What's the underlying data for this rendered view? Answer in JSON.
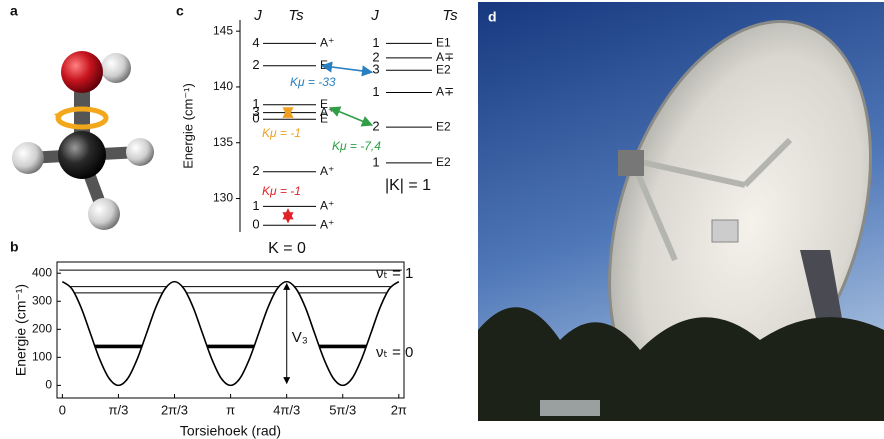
{
  "panel_labels": [
    "a",
    "b",
    "c",
    "d"
  ],
  "chart_data": [
    {
      "type": "line",
      "xlabel": "Torsiehoek (rad)",
      "ylabel": "Energie (cm⁻¹)",
      "x": [
        0,
        0.175,
        0.349,
        0.524,
        0.698,
        0.873,
        1.047,
        1.222,
        1.396,
        1.571,
        1.745,
        1.92,
        2.094,
        2.269,
        2.443,
        2.618,
        2.793,
        2.967,
        3.142,
        3.316,
        3.491,
        3.665,
        3.84,
        4.014,
        4.189,
        4.363,
        4.538,
        4.712,
        4.887,
        5.061,
        5.236,
        5.411,
        5.585,
        5.76,
        5.934,
        6.109,
        6.283
      ],
      "series": [
        {
          "color": "#000000",
          "values": [
            370,
            345,
            278,
            185,
            93,
            25,
            0,
            25,
            93,
            185,
            278,
            345,
            370,
            345,
            278,
            185,
            93,
            25,
            0,
            25,
            93,
            185,
            278,
            345,
            370,
            345,
            278,
            185,
            93,
            25,
            0,
            25,
            93,
            185,
            278,
            345,
            370
          ]
        }
      ],
      "level_lines": [
        411,
        352,
        330,
        142,
        136
      ],
      "xlim": [
        -0.1,
        6.38
      ],
      "xticks": [
        0,
        {
          "value": 1.047,
          "label": "π/3"
        },
        {
          "value": 2.094,
          "label": "2π/3"
        },
        {
          "value": 3.142,
          "label": "π"
        },
        {
          "value": 4.189,
          "label": "4π/3"
        },
        {
          "value": 5.236,
          "label": "5π/3"
        },
        {
          "value": 6.283,
          "label": "2π"
        }
      ],
      "ylim": [
        -45,
        440
      ],
      "yticks": [
        0,
        100,
        200,
        300,
        400
      ],
      "annotations": [
        "V₃",
        "νₜ = 1",
        "νₜ = 0"
      ]
    },
    {
      "type": "levels",
      "ylabel": "Energie (cm⁻¹)",
      "ylim": [
        127,
        146
      ],
      "yticks": [
        130,
        135,
        140,
        145
      ],
      "groups": [
        {
          "name": "K = 0",
          "headers": [
            "J",
            "Ts"
          ],
          "levels": [
            {
              "J": 4,
              "Ts": "A⁺",
              "energy": 143.9
            },
            {
              "J": 2,
              "Ts": "E",
              "energy": 141.9
            },
            {
              "J": 1,
              "Ts": "E",
              "energy": 138.4
            },
            {
              "J": 3,
              "Ts": "A⁺",
              "energy": 137.7
            },
            {
              "J": 0,
              "Ts": "E",
              "energy": 137.1
            },
            {
              "J": 2,
              "Ts": "A⁺",
              "energy": 132.4
            },
            {
              "J": 1,
              "Ts": "A⁺",
              "energy": 129.3
            },
            {
              "J": 0,
              "Ts": "A⁺",
              "energy": 127.6
            }
          ]
        },
        {
          "name": "|K| = 1",
          "headers": [
            "J",
            "Ts"
          ],
          "levels": [
            {
              "J": 1,
              "Ts": "E1",
              "energy": 143.9
            },
            {
              "J": 2,
              "Ts": "A∓",
              "energy": 142.6
            },
            {
              "J": 3,
              "Ts": "E2",
              "energy": 141.5
            },
            {
              "J": 1,
              "Ts": "A∓",
              "energy": 139.5
            },
            {
              "J": 2,
              "Ts": "E2",
              "energy": 136.4
            },
            {
              "J": 1,
              "Ts": "E2",
              "energy": 133.2
            }
          ]
        }
      ],
      "annotations": [
        {
          "text": "Kμ = -33",
          "color": "#2a7fc0"
        },
        {
          "text": "Kμ = -1",
          "color": "#f0a020"
        },
        {
          "text": "Kμ = -7,4",
          "color": "#2f9e44"
        },
        {
          "text": "Kμ = -1",
          "color": "#e0242a"
        }
      ]
    }
  ]
}
